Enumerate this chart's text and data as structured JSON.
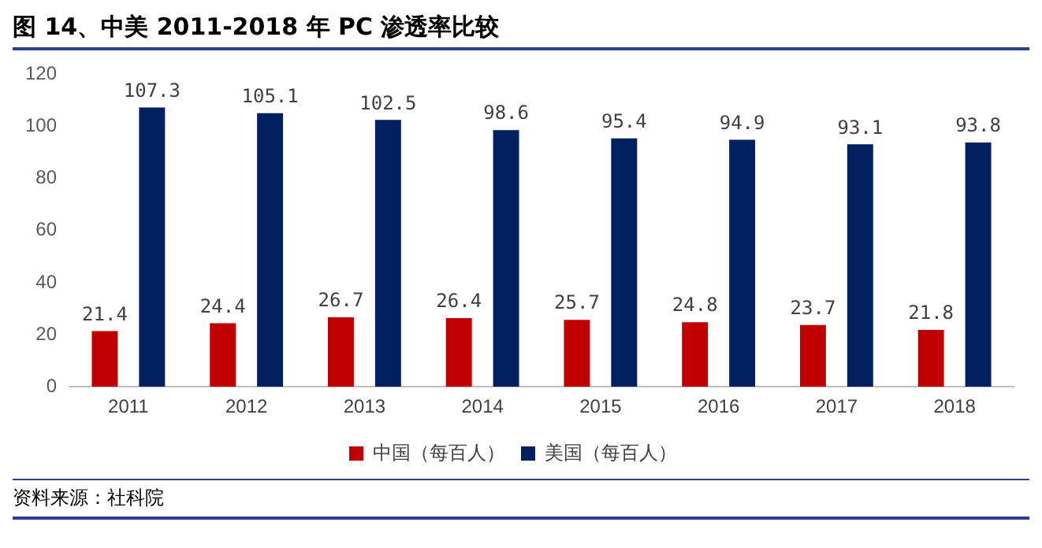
{
  "chart_data": {
    "type": "bar",
    "title": "图 14、中美 2011-2018 年 PC 渗透率比较",
    "categories": [
      "2011",
      "2012",
      "2013",
      "2014",
      "2015",
      "2016",
      "2017",
      "2018"
    ],
    "series": [
      {
        "name": "中国（每百人）",
        "color": "#c00000",
        "values": [
          21.4,
          24.4,
          26.7,
          26.4,
          25.7,
          24.8,
          23.7,
          21.8
        ]
      },
      {
        "name": "美国（每百人）",
        "color": "#002060",
        "values": [
          107.3,
          105.1,
          102.5,
          98.6,
          95.4,
          94.9,
          93.1,
          93.8
        ]
      }
    ],
    "ylim": [
      0,
      120
    ],
    "yticks": [
      0,
      20,
      40,
      60,
      80,
      100,
      120
    ],
    "grid": false,
    "legend": "bottom",
    "data_labels": true,
    "annotations": [
      "资料来源：社科院"
    ]
  }
}
